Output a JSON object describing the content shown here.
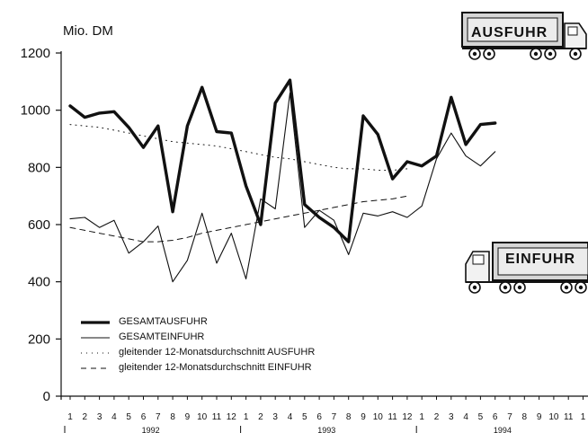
{
  "chart_data": {
    "type": "line",
    "unit_label": "Mio. DM",
    "ylim": [
      0,
      1200
    ],
    "yticks": [
      0,
      200,
      400,
      600,
      800,
      1000,
      1200
    ],
    "x_month_labels": [
      "1",
      "2",
      "3",
      "4",
      "5",
      "6",
      "7",
      "8",
      "9",
      "10",
      "11",
      "12",
      "1",
      "2",
      "3",
      "4",
      "5",
      "6",
      "7",
      "8",
      "9",
      "10",
      "11",
      "12",
      "1",
      "2",
      "3",
      "4",
      "5",
      "6",
      "7",
      "8",
      "9",
      "10",
      "11",
      "1"
    ],
    "years": [
      {
        "label": "1992",
        "center_index": 5.5
      },
      {
        "label": "1993",
        "center_index": 17.5
      },
      {
        "label": "1994",
        "center_index": 29.5
      }
    ],
    "series": [
      {
        "name": "GESAMTAUSFUHR",
        "style": "thick",
        "values": [
          1015,
          975,
          990,
          995,
          940,
          870,
          945,
          645,
          945,
          1080,
          925,
          920,
          735,
          600,
          1025,
          1105,
          670,
          625,
          590,
          540,
          980,
          915,
          760,
          820,
          805,
          840,
          1045,
          880,
          950,
          955
        ]
      },
      {
        "name": "GESAMTEINFUHR",
        "style": "thin",
        "values": [
          620,
          625,
          590,
          615,
          500,
          540,
          595,
          400,
          475,
          640,
          465,
          570,
          410,
          690,
          655,
          1060,
          590,
          650,
          615,
          495,
          640,
          630,
          645,
          625,
          665,
          830,
          920,
          840,
          805,
          855
        ]
      },
      {
        "name": "gleitender 12-Monatsdurchschnitt AUSFUHR",
        "style": "dotted",
        "values": [
          950,
          945,
          940,
          930,
          920,
          910,
          900,
          890,
          885,
          880,
          875,
          865,
          855,
          845,
          835,
          830,
          820,
          810,
          800,
          795,
          795,
          790,
          790,
          795
        ]
      },
      {
        "name": "gleitender 12-Monatsdurchschnitt EINFUHR",
        "style": "dashed",
        "values": [
          590,
          580,
          570,
          560,
          550,
          540,
          540,
          545,
          555,
          570,
          580,
          590,
          600,
          610,
          620,
          630,
          640,
          650,
          660,
          670,
          680,
          685,
          690,
          700
        ]
      }
    ]
  },
  "badges": {
    "export": "AUSFUHR",
    "import": "EINFUHR"
  }
}
